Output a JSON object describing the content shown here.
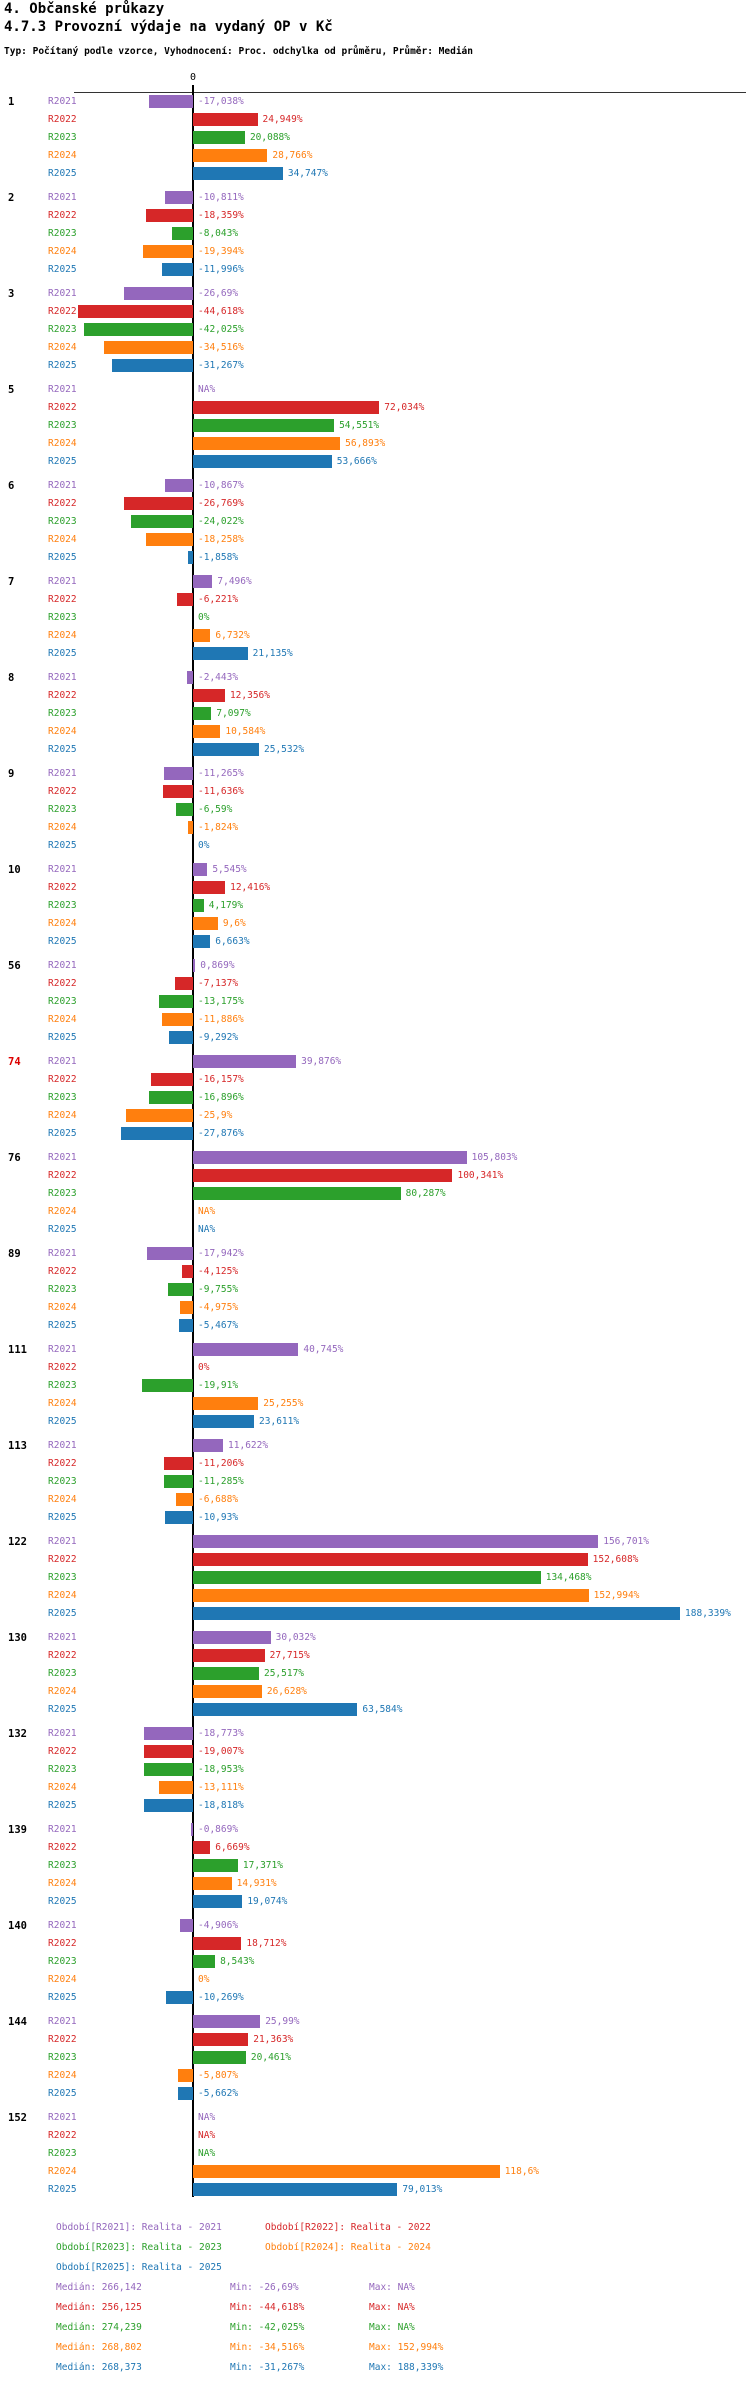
{
  "title": "4. Občanské průkazy",
  "subtitle": "4.7.3 Provozní výdaje na vydaný OP v Kč",
  "type_line": "Typ: Počítaný podle vzorce, Vyhodnocení: Proc. odchylka od průměru, Průměr: Medián",
  "axis": {
    "zero_label": "0"
  },
  "colors": {
    "R2021": "#9467bd",
    "R2022": "#d62728",
    "R2023": "#2ca02c",
    "R2024": "#ff7f0e",
    "R2025": "#1f77b4",
    "alert_id": "#dd0000",
    "text": "#000000",
    "axis": "#333333"
  },
  "chart_data": {
    "type": "bar",
    "orientation": "horizontal",
    "unit": "%",
    "xlim": [
      -50,
      195
    ],
    "grid": false,
    "series_names": [
      "R2021",
      "R2022",
      "R2023",
      "R2024",
      "R2025"
    ],
    "series_colors": [
      "#9467bd",
      "#d62728",
      "#2ca02c",
      "#ff7f0e",
      "#1f77b4"
    ],
    "groups": [
      {
        "id": "1",
        "alert": false,
        "values": [
          -17.038,
          24.949,
          20.088,
          28.766,
          34.747
        ],
        "labels": [
          "-17,038%",
          "24,949%",
          "20,088%",
          "28,766%",
          "34,747%"
        ]
      },
      {
        "id": "2",
        "alert": false,
        "values": [
          -10.811,
          -18.359,
          -8.043,
          -19.394,
          -11.996
        ],
        "labels": [
          "-10,811%",
          "-18,359%",
          "-8,043%",
          "-19,394%",
          "-11,996%"
        ]
      },
      {
        "id": "3",
        "alert": false,
        "values": [
          -26.69,
          -44.618,
          -42.025,
          -34.516,
          -31.267
        ],
        "labels": [
          "-26,69%",
          "-44,618%",
          "-42,025%",
          "-34,516%",
          "-31,267%"
        ]
      },
      {
        "id": "5",
        "alert": false,
        "values": [
          null,
          72.034,
          54.551,
          56.893,
          53.666
        ],
        "labels": [
          "NA%",
          "72,034%",
          "54,551%",
          "56,893%",
          "53,666%"
        ]
      },
      {
        "id": "6",
        "alert": false,
        "values": [
          -10.867,
          -26.769,
          -24.022,
          -18.258,
          -1.858
        ],
        "labels": [
          "-10,867%",
          "-26,769%",
          "-24,022%",
          "-18,258%",
          "-1,858%"
        ]
      },
      {
        "id": "7",
        "alert": false,
        "values": [
          7.496,
          -6.221,
          0,
          6.732,
          21.135
        ],
        "labels": [
          "7,496%",
          "-6,221%",
          "0%",
          "6,732%",
          "21,135%"
        ]
      },
      {
        "id": "8",
        "alert": false,
        "values": [
          -2.443,
          12.356,
          7.097,
          10.584,
          25.532
        ],
        "labels": [
          "-2,443%",
          "12,356%",
          "7,097%",
          "10,584%",
          "25,532%"
        ]
      },
      {
        "id": "9",
        "alert": false,
        "values": [
          -11.265,
          -11.636,
          -6.59,
          -1.824,
          0
        ],
        "labels": [
          "-11,265%",
          "-11,636%",
          "-6,59%",
          "-1,824%",
          "0%"
        ]
      },
      {
        "id": "10",
        "alert": false,
        "values": [
          5.545,
          12.416,
          4.179,
          9.6,
          6.663
        ],
        "labels": [
          "5,545%",
          "12,416%",
          "4,179%",
          "9,6%",
          "6,663%"
        ]
      },
      {
        "id": "56",
        "alert": false,
        "values": [
          0.869,
          -7.137,
          -13.175,
          -11.886,
          -9.292
        ],
        "labels": [
          "0,869%",
          "-7,137%",
          "-13,175%",
          "-11,886%",
          "-9,292%"
        ]
      },
      {
        "id": "74",
        "alert": true,
        "values": [
          39.876,
          -16.157,
          -16.896,
          -25.9,
          -27.876
        ],
        "labels": [
          "39,876%",
          "-16,157%",
          "-16,896%",
          "-25,9%",
          "-27,876%"
        ]
      },
      {
        "id": "76",
        "alert": false,
        "values": [
          105.803,
          100.341,
          80.287,
          null,
          null
        ],
        "labels": [
          "105,803%",
          "100,341%",
          "80,287%",
          "NA%",
          "NA%"
        ]
      },
      {
        "id": "89",
        "alert": false,
        "values": [
          -17.942,
          -4.125,
          -9.755,
          -4.975,
          -5.467
        ],
        "labels": [
          "-17,942%",
          "-4,125%",
          "-9,755%",
          "-4,975%",
          "-5,467%"
        ]
      },
      {
        "id": "111",
        "alert": false,
        "values": [
          40.745,
          0,
          -19.91,
          25.255,
          23.611
        ],
        "labels": [
          "40,745%",
          "0%",
          "-19,91%",
          "25,255%",
          "23,611%"
        ]
      },
      {
        "id": "113",
        "alert": false,
        "values": [
          11.622,
          -11.206,
          -11.285,
          -6.688,
          -10.93
        ],
        "labels": [
          "11,622%",
          "-11,206%",
          "-11,285%",
          "-6,688%",
          "-10,93%"
        ]
      },
      {
        "id": "122",
        "alert": false,
        "values": [
          156.701,
          152.608,
          134.468,
          152.994,
          188.339
        ],
        "labels": [
          "156,701%",
          "152,608%",
          "134,468%",
          "152,994%",
          "188,339%"
        ]
      },
      {
        "id": "130",
        "alert": false,
        "values": [
          30.032,
          27.715,
          25.517,
          26.628,
          63.584
        ],
        "labels": [
          "30,032%",
          "27,715%",
          "25,517%",
          "26,628%",
          "63,584%"
        ]
      },
      {
        "id": "132",
        "alert": false,
        "values": [
          -18.773,
          -19.007,
          -18.953,
          -13.111,
          -18.818
        ],
        "labels": [
          "-18,773%",
          "-19,007%",
          "-18,953%",
          "-13,111%",
          "-18,818%"
        ]
      },
      {
        "id": "139",
        "alert": false,
        "values": [
          -0.869,
          6.669,
          17.371,
          14.931,
          19.074
        ],
        "labels": [
          "-0,869%",
          "6,669%",
          "17,371%",
          "14,931%",
          "19,074%"
        ]
      },
      {
        "id": "140",
        "alert": false,
        "values": [
          -4.906,
          18.712,
          8.543,
          0,
          -10.269
        ],
        "labels": [
          "-4,906%",
          "18,712%",
          "8,543%",
          "0%",
          "-10,269%"
        ]
      },
      {
        "id": "144",
        "alert": false,
        "values": [
          25.99,
          21.363,
          20.461,
          -5.807,
          -5.662
        ],
        "labels": [
          "25,99%",
          "21,363%",
          "20,461%",
          "-5,807%",
          "-5,662%"
        ]
      },
      {
        "id": "152",
        "alert": false,
        "values": [
          null,
          null,
          null,
          118.6,
          79.013
        ],
        "labels": [
          "NA%",
          "NA%",
          "NA%",
          "118,6%",
          "79,013%"
        ]
      }
    ],
    "legend": [
      {
        "label": "Období[R2021]: Realita - 2021",
        "color": "#9467bd"
      },
      {
        "label": "Období[R2022]: Realita - 2022",
        "color": "#d62728"
      },
      {
        "label": "Období[R2023]: Realita - 2023",
        "color": "#2ca02c"
      },
      {
        "label": "Období[R2024]: Realita - 2024",
        "color": "#ff7f0e"
      },
      {
        "label": "Období[R2025]: Realita - 2025",
        "color": "#1f77b4"
      }
    ],
    "stats": [
      {
        "median": "Medián: 266,142",
        "min": "Min: -26,69%",
        "max": "Max: NA%",
        "color": "#9467bd"
      },
      {
        "median": "Medián: 256,125",
        "min": "Min: -44,618%",
        "max": "Max: NA%",
        "color": "#d62728"
      },
      {
        "median": "Medián: 274,239",
        "min": "Min: -42,025%",
        "max": "Max: NA%",
        "color": "#2ca02c"
      },
      {
        "median": "Medián: 268,802",
        "min": "Min: -34,516%",
        "max": "Max: 152,994%",
        "color": "#ff7f0e"
      },
      {
        "median": "Medián: 268,373",
        "min": "Min: -31,267%",
        "max": "Max: 188,339%",
        "color": "#1f77b4"
      }
    ]
  }
}
